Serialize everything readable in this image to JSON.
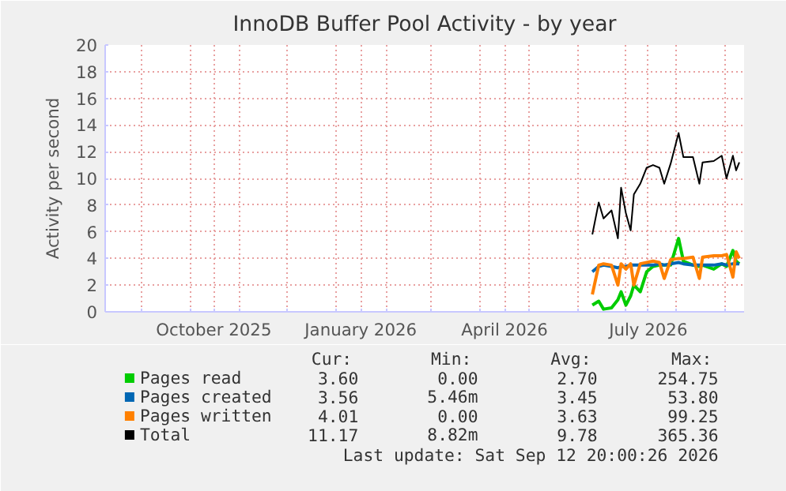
{
  "chart_data": {
    "type": "line",
    "title": "InnoDB Buffer Pool Activity - by year",
    "ylabel": "Activity per second",
    "x": [
      "2026-06-10",
      "2026-06-14",
      "2026-06-17",
      "2026-06-22",
      "2026-06-26",
      "2026-06-28",
      "2026-07-01",
      "2026-07-04",
      "2026-07-06",
      "2026-07-10",
      "2026-07-14",
      "2026-07-18",
      "2026-07-22",
      "2026-07-25",
      "2026-07-29",
      "2026-08-03",
      "2026-08-06",
      "2026-08-12",
      "2026-08-16",
      "2026-08-18",
      "2026-08-25",
      "2026-08-30",
      "2026-09-02",
      "2026-09-06",
      "2026-09-08",
      "2026-09-10"
    ],
    "series": [
      {
        "name": "Pages read",
        "color": "#00cc00",
        "values": [
          0.5,
          0.8,
          0.2,
          0.3,
          0.9,
          1.5,
          0.5,
          1.2,
          2.0,
          1.5,
          3.0,
          3.4,
          3.5,
          3.5,
          3.5,
          5.5,
          3.8,
          3.5,
          3.4,
          3.5,
          3.2,
          3.6,
          3.4,
          4.6,
          3.8,
          3.6
        ]
      },
      {
        "name": "Pages created",
        "color": "#0066b3",
        "values": [
          3.0,
          3.4,
          3.5,
          3.4,
          3.3,
          3.4,
          3.4,
          3.5,
          3.5,
          3.5,
          3.5,
          3.5,
          3.6,
          3.5,
          3.6,
          3.7,
          3.6,
          3.5,
          3.5,
          3.5,
          3.5,
          3.6,
          3.5,
          3.6,
          3.6,
          3.6
        ]
      },
      {
        "name": "Pages written",
        "color": "#ff8000",
        "values": [
          1.3,
          3.5,
          3.6,
          3.5,
          2.0,
          3.6,
          3.2,
          3.6,
          2.0,
          3.6,
          3.7,
          3.8,
          3.7,
          2.5,
          3.9,
          4.0,
          4.0,
          4.1,
          2.5,
          4.1,
          4.2,
          4.2,
          4.3,
          2.6,
          4.5,
          4.0
        ]
      },
      {
        "name": "Total",
        "color": "#000000",
        "values": [
          5.8,
          8.2,
          7.0,
          7.6,
          5.5,
          9.3,
          7.4,
          6.1,
          8.8,
          9.6,
          10.8,
          11.0,
          10.8,
          9.6,
          11.1,
          13.4,
          11.6,
          11.6,
          9.6,
          11.2,
          11.3,
          11.7,
          10.0,
          11.7,
          10.6,
          11.2
        ]
      }
    ],
    "xlim": [
      "2025-08-09",
      "2026-09-13"
    ],
    "xticks": [
      {
        "value": "2025-09-01",
        "label": null
      },
      {
        "value": "2025-10-01",
        "label": null
      },
      {
        "value": "2025-10-16",
        "label": "October 2025"
      },
      {
        "value": "2025-11-01",
        "label": null
      },
      {
        "value": "2025-12-01",
        "label": null
      },
      {
        "value": "2026-01-01",
        "label": null
      },
      {
        "value": "2026-01-16",
        "label": "January 2026"
      },
      {
        "value": "2026-02-01",
        "label": null
      },
      {
        "value": "2026-03-01",
        "label": null
      },
      {
        "value": "2026-04-01",
        "label": null
      },
      {
        "value": "2026-04-16",
        "label": "April 2026"
      },
      {
        "value": "2026-05-01",
        "label": null
      },
      {
        "value": "2026-06-01",
        "label": null
      },
      {
        "value": "2026-07-01",
        "label": null
      },
      {
        "value": "2026-07-15",
        "label": "July 2026"
      },
      {
        "value": "2026-08-01",
        "label": null
      },
      {
        "value": "2026-09-01",
        "label": null
      }
    ],
    "ylim": [
      0,
      20
    ],
    "yticks": [
      0,
      2,
      4,
      6,
      8,
      10,
      12,
      14,
      16,
      18,
      20
    ],
    "grid": true,
    "legend": "bottom",
    "annotations": [
      "Cur:",
      "Min:",
      "Avg:",
      "Max:",
      "3.60",
      "0.00",
      "2.70",
      "254.75",
      "3.56",
      "5.46m",
      "3.45",
      "53.80",
      "4.01",
      "0.00",
      "3.63",
      "99.25",
      "11.17",
      "8.82m",
      "9.78",
      "365.36",
      "Last update: Sat Sep 12 20:00:26 2026"
    ]
  }
}
